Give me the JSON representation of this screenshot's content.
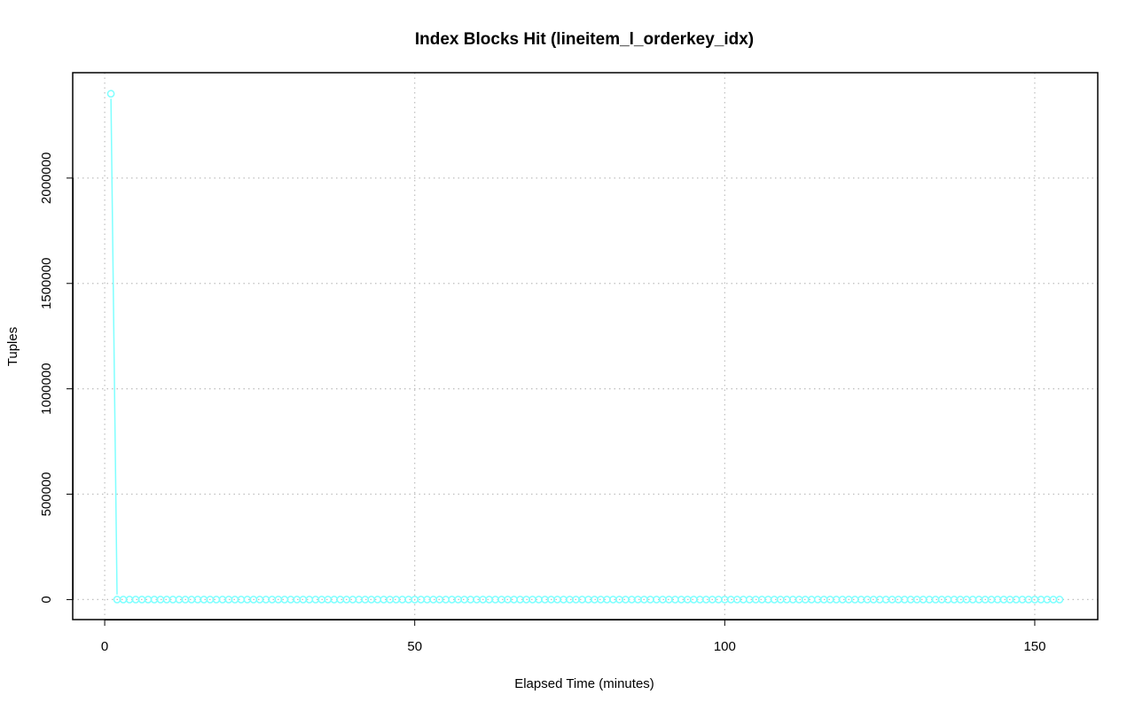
{
  "chart_data": {
    "type": "line",
    "title": "Index Blocks Hit (lineitem_l_orderkey_idx)",
    "xlabel": "Elapsed Time (minutes)",
    "ylabel": "Tuples",
    "xlim": [
      -5.16,
      160.16
    ],
    "ylim": [
      -95000,
      2500000
    ],
    "xticks": [
      0,
      50,
      100,
      150
    ],
    "xtick_labels": [
      "0",
      "50",
      "100",
      "150"
    ],
    "yticks": [
      0,
      500000,
      1000000,
      1500000,
      2000000
    ],
    "ytick_labels": [
      "0",
      "500000",
      "1000000",
      "1500000",
      "2000000"
    ],
    "grid": true,
    "series": [
      {
        "color": "#7fffff",
        "marker": "circle",
        "x_start": 1,
        "x_end": 154,
        "points": [
          [
            1,
            2400000
          ]
        ],
        "default_y": 0
      }
    ]
  }
}
